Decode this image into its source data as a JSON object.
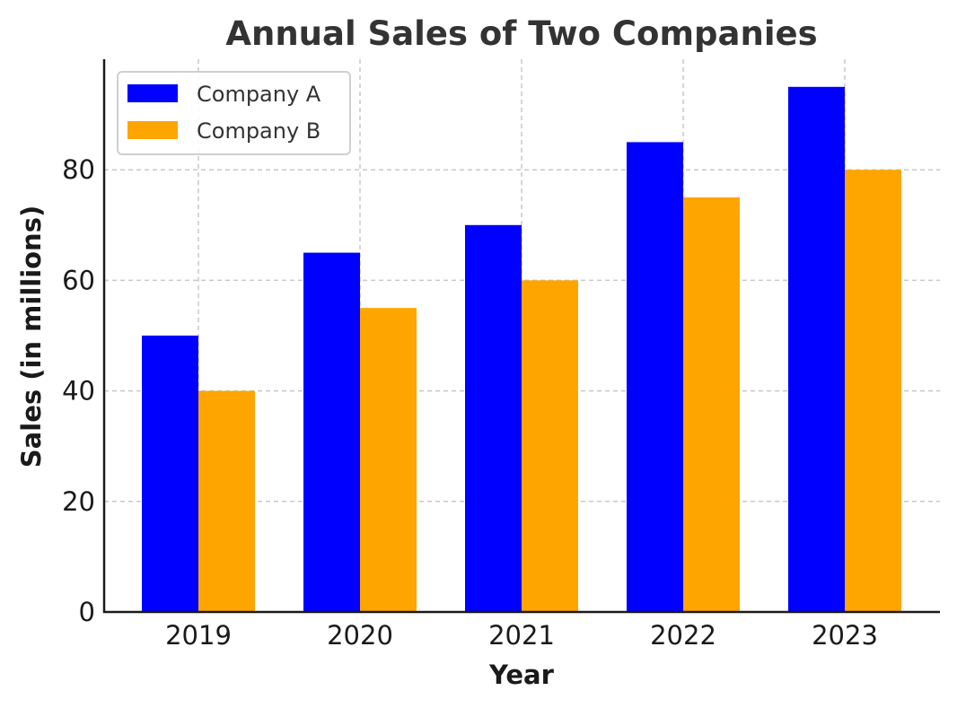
{
  "chart_data": {
    "type": "bar",
    "title": "Annual Sales of Two Companies",
    "xlabel": "Year",
    "ylabel": "Sales (in millions)",
    "categories": [
      "2019",
      "2020",
      "2021",
      "2022",
      "2023"
    ],
    "series": [
      {
        "name": "Company A",
        "values": [
          50,
          65,
          70,
          85,
          95
        ],
        "color": "#0000ff"
      },
      {
        "name": "Company B",
        "values": [
          40,
          55,
          60,
          75,
          80
        ],
        "color": "#ffa500"
      }
    ],
    "ylim": [
      0,
      100
    ],
    "yticks": [
      0,
      20,
      40,
      60,
      80
    ],
    "grid": true,
    "legend_position": "top-left"
  }
}
